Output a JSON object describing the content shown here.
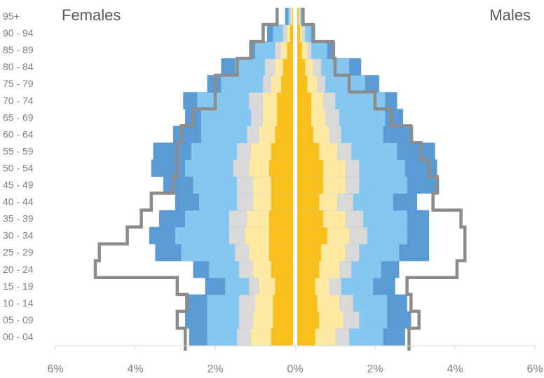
{
  "chart_data": {
    "type": "bar",
    "orientation": "horizontal",
    "layout": "population-pyramid",
    "labels": {
      "left": "Females",
      "right": "Males"
    },
    "categories": [
      "00 - 04",
      "05 - 09",
      "10 - 14",
      "15 - 19",
      "20 - 24",
      "25 - 29",
      "30 - 34",
      "35 - 39",
      "40 - 44",
      "45 - 49",
      "50 - 54",
      "55 - 59",
      "60 - 64",
      "65 - 69",
      "70 - 74",
      "75 - 79",
      "80 - 84",
      "85 - 89",
      "90 - 94",
      "95+"
    ],
    "x_ticks": [
      "6%",
      "4%",
      "2%",
      "0%",
      "2%",
      "4%",
      "6%"
    ],
    "xlim": [
      -6,
      6
    ],
    "grid": false,
    "series_colors": [
      "#f9bf1c",
      "#fde9a1",
      "#d9d9d9",
      "#86c7ef",
      "#5b9bd5"
    ],
    "outline_color": "#8c8c8c",
    "females_cumulative": [
      [
        0.55,
        1.05,
        1.4,
        2.15,
        2.6
      ],
      [
        0.5,
        1.0,
        1.35,
        2.15,
        2.7
      ],
      [
        0.5,
        0.95,
        1.35,
        2.15,
        2.7
      ],
      [
        0.45,
        0.85,
        1.1,
        1.7,
        2.2
      ],
      [
        0.55,
        1.0,
        1.35,
        2.1,
        2.5
      ],
      [
        0.6,
        1.1,
        1.45,
        2.8,
        3.45
      ],
      [
        0.6,
        1.2,
        1.6,
        2.95,
        3.6
      ],
      [
        0.6,
        1.15,
        1.6,
        2.7,
        3.35
      ],
      [
        0.55,
        1.0,
        1.4,
        2.35,
        2.95
      ],
      [
        0.55,
        1.0,
        1.4,
        2.5,
        3.25
      ],
      [
        0.6,
        1.1,
        1.5,
        2.7,
        3.55
      ],
      [
        0.55,
        1.05,
        1.4,
        2.55,
        3.5
      ],
      [
        0.45,
        0.85,
        1.15,
        2.3,
        3.0
      ],
      [
        0.4,
        0.75,
        1.05,
        2.3,
        2.7
      ],
      [
        0.4,
        0.75,
        1.1,
        2.4,
        2.75
      ],
      [
        0.3,
        0.55,
        0.75,
        1.8,
        2.15
      ],
      [
        0.25,
        0.45,
        0.7,
        1.45,
        1.8
      ],
      [
        0.15,
        0.3,
        0.45,
        0.95,
        1.1
      ],
      [
        0.08,
        0.15,
        0.25,
        0.5,
        0.65
      ],
      [
        0.02,
        0.05,
        0.08,
        0.12,
        0.2
      ]
    ],
    "males_cumulative": [
      [
        0.45,
        0.95,
        1.3,
        2.15,
        2.7
      ],
      [
        0.55,
        1.15,
        1.55,
        2.25,
        2.85
      ],
      [
        0.5,
        1.05,
        1.4,
        2.25,
        2.75
      ],
      [
        0.45,
        0.8,
        1.1,
        1.9,
        2.45
      ],
      [
        0.55,
        1.05,
        1.35,
        2.1,
        2.55
      ],
      [
        0.6,
        1.2,
        1.55,
        2.55,
        3.3
      ],
      [
        0.75,
        1.3,
        1.75,
        2.75,
        3.3
      ],
      [
        0.65,
        1.2,
        1.65,
        2.75,
        3.3
      ],
      [
        0.55,
        1.0,
        1.4,
        2.4,
        3.0
      ],
      [
        0.65,
        1.2,
        1.55,
        2.75,
        3.55
      ],
      [
        0.65,
        1.2,
        1.55,
        2.7,
        3.5
      ],
      [
        0.55,
        1.0,
        1.35,
        2.5,
        3.45
      ],
      [
        0.4,
        0.8,
        1.1,
        2.15,
        2.9
      ],
      [
        0.35,
        0.7,
        1.05,
        2.2,
        2.65
      ],
      [
        0.35,
        0.65,
        0.95,
        2.2,
        2.5
      ],
      [
        0.25,
        0.5,
        0.7,
        1.7,
        2.05
      ],
      [
        0.2,
        0.4,
        0.6,
        1.3,
        1.6
      ],
      [
        0.12,
        0.25,
        0.35,
        0.75,
        0.95
      ],
      [
        0.07,
        0.12,
        0.2,
        0.35,
        0.45
      ],
      [
        0.03,
        0.05,
        0.08,
        0.13,
        0.18
      ]
    ],
    "females_outline": [
      2.75,
      2.95,
      2.7,
      2.95,
      5.0,
      4.9,
      4.2,
      3.85,
      3.6,
      3.05,
      2.95,
      2.95,
      2.85,
      2.55,
      2.0,
      2.0,
      1.45,
      1.1,
      0.8,
      0.45
    ],
    "males_outline": [
      2.85,
      3.1,
      2.9,
      2.8,
      4.05,
      4.25,
      4.25,
      4.15,
      3.45,
      3.55,
      3.35,
      3.15,
      2.9,
      2.4,
      2.0,
      1.35,
      1.0,
      0.95,
      0.45,
      0.2
    ]
  }
}
